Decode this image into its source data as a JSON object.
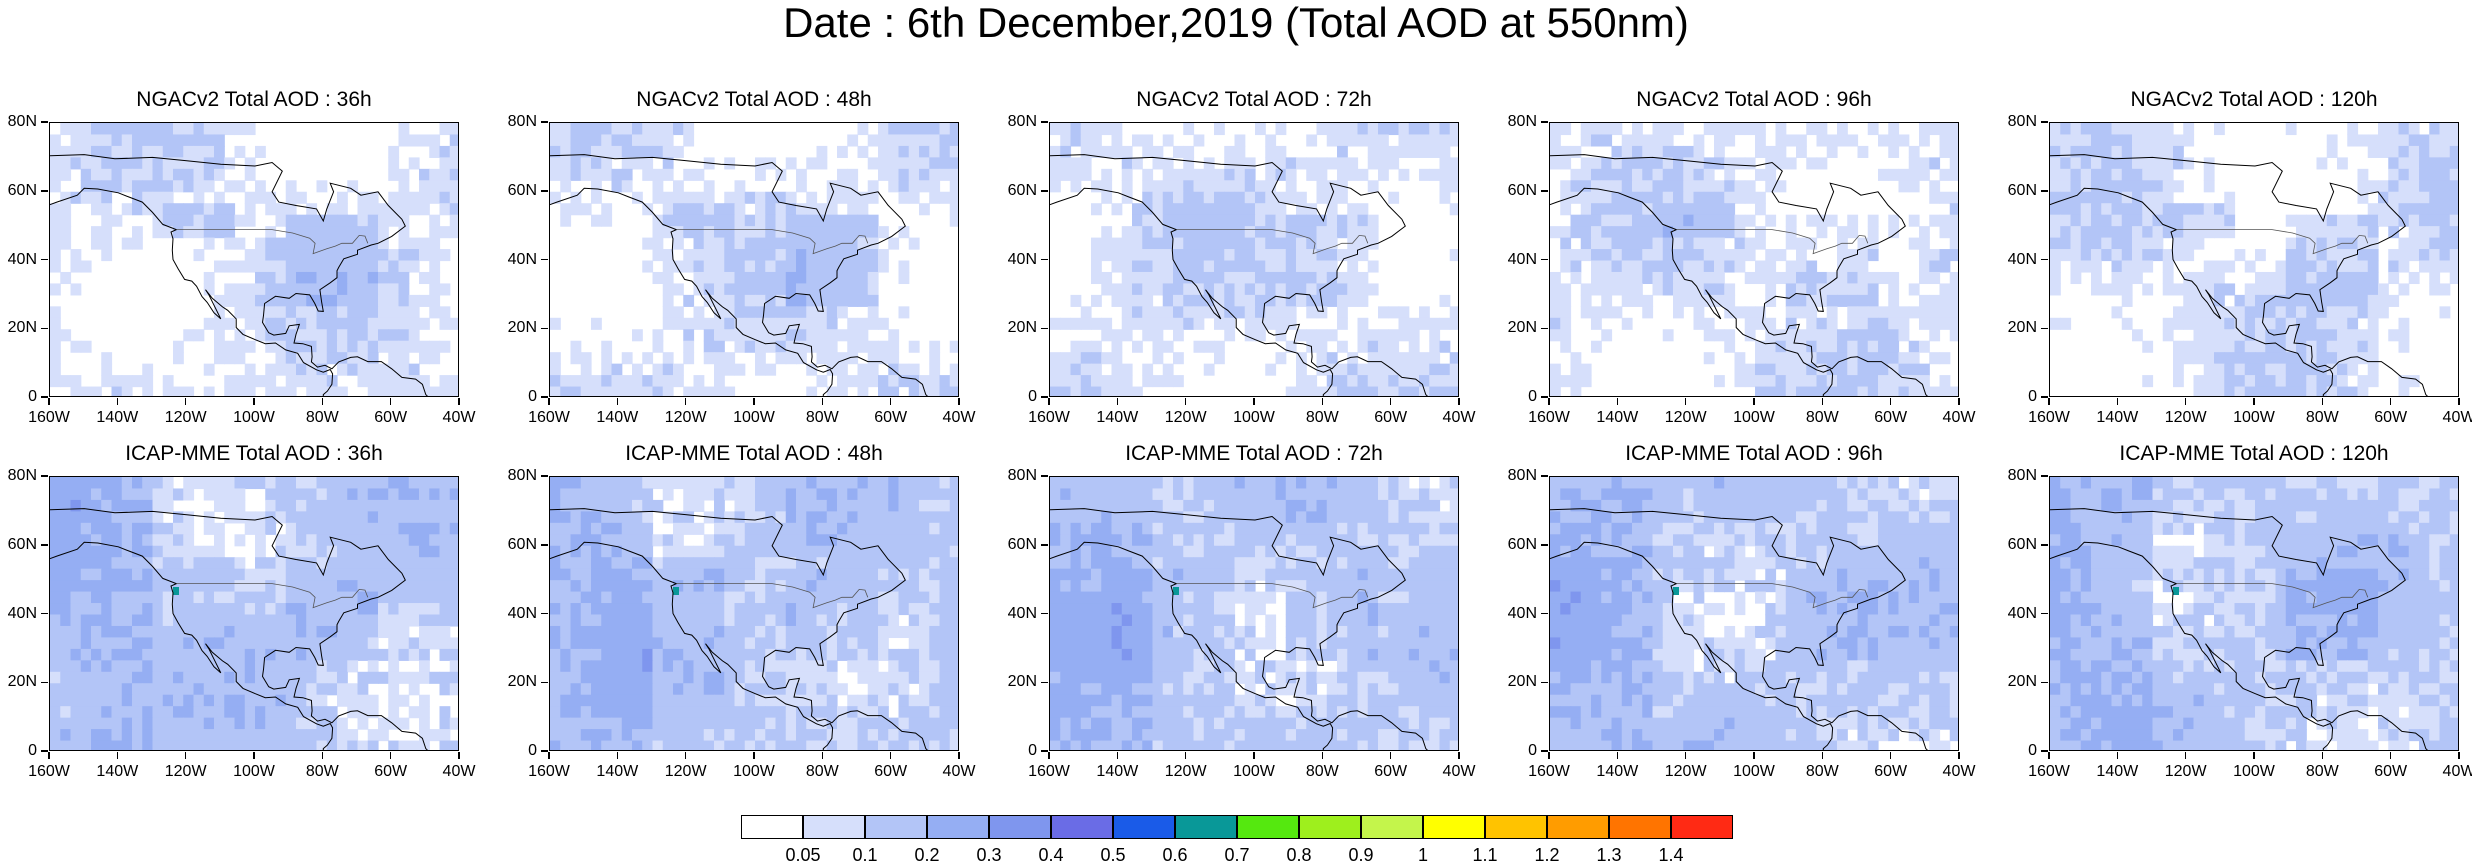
{
  "title": "Date : 6th December,2019 (Total AOD at 550nm)",
  "chart_data": {
    "type": "heatmap",
    "panels": [
      {
        "title": "NGACv2 Total AOD : 36h",
        "model": "NGACv2",
        "lead": "36h"
      },
      {
        "title": "NGACv2 Total AOD : 48h",
        "model": "NGACv2",
        "lead": "48h"
      },
      {
        "title": "NGACv2 Total AOD : 72h",
        "model": "NGACv2",
        "lead": "72h"
      },
      {
        "title": "NGACv2 Total AOD : 96h",
        "model": "NGACv2",
        "lead": "96h"
      },
      {
        "title": "NGACv2 Total AOD : 120h",
        "model": "NGACv2",
        "lead": "120h"
      },
      {
        "title": "ICAP-MME Total AOD : 36h",
        "model": "ICAP-MME",
        "lead": "36h"
      },
      {
        "title": "ICAP-MME Total AOD : 48h",
        "model": "ICAP-MME",
        "lead": "48h"
      },
      {
        "title": "ICAP-MME Total AOD : 72h",
        "model": "ICAP-MME",
        "lead": "72h"
      },
      {
        "title": "ICAP-MME Total AOD : 96h",
        "model": "ICAP-MME",
        "lead": "96h"
      },
      {
        "title": "ICAP-MME Total AOD : 120h",
        "model": "ICAP-MME",
        "lead": "120h"
      }
    ],
    "x_ticks": [
      "160W",
      "140W",
      "120W",
      "100W",
      "80W",
      "60W",
      "40W"
    ],
    "y_ticks": [
      "0",
      "20N",
      "40N",
      "60N",
      "80N"
    ],
    "xlim": [
      -160,
      -40
    ],
    "ylim": [
      0,
      80
    ],
    "colorbar": {
      "labels": [
        "0.05",
        "0.1",
        "0.2",
        "0.3",
        "0.4",
        "0.5",
        "0.6",
        "0.7",
        "0.8",
        "0.9",
        "1",
        "1.1",
        "1.2",
        "1.3",
        "1.4"
      ],
      "colors": [
        "#ffffff",
        "#d6dffb",
        "#b3c5f7",
        "#95aef3",
        "#7f96ee",
        "#6a6ce6",
        "#1a5be8",
        "#099898",
        "#55e80f",
        "#9eef1d",
        "#c4f54b",
        "#ffff00",
        "#ffc300",
        "#ff9c00",
        "#ff7400",
        "#ff2a14"
      ]
    }
  }
}
